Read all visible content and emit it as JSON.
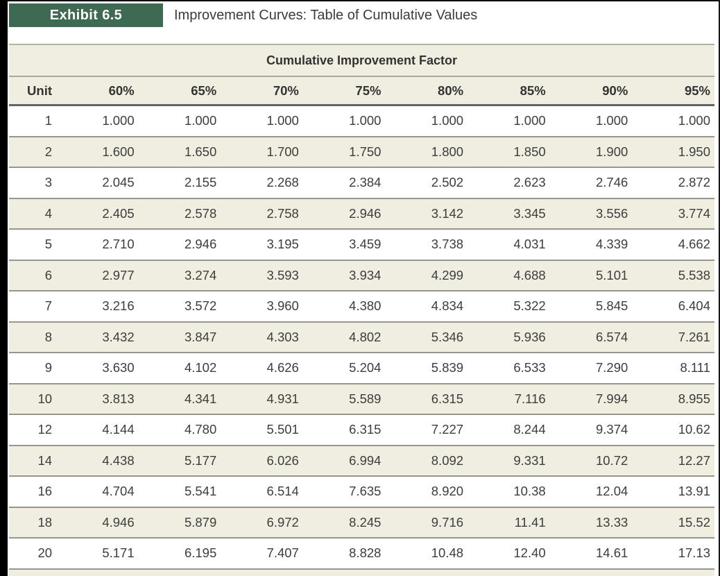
{
  "exhibit": {
    "badge_label": "Exhibit 6.5",
    "title": "Improvement Curves: Table of Cumulative Values"
  },
  "chart_data": {
    "type": "table",
    "title": "Cumulative Improvement Factor",
    "columns": [
      "Unit",
      "60%",
      "65%",
      "70%",
      "75%",
      "80%",
      "85%",
      "90%",
      "95%"
    ],
    "rows": [
      [
        "1",
        "1.000",
        "1.000",
        "1.000",
        "1.000",
        "1.000",
        "1.000",
        "1.000",
        "1.000"
      ],
      [
        "2",
        "1.600",
        "1.650",
        "1.700",
        "1.750",
        "1.800",
        "1.850",
        "1.900",
        "1.950"
      ],
      [
        "3",
        "2.045",
        "2.155",
        "2.268",
        "2.384",
        "2.502",
        "2.623",
        "2.746",
        "2.872"
      ],
      [
        "4",
        "2.405",
        "2.578",
        "2.758",
        "2.946",
        "3.142",
        "3.345",
        "3.556",
        "3.774"
      ],
      [
        "5",
        "2.710",
        "2.946",
        "3.195",
        "3.459",
        "3.738",
        "4.031",
        "4.339",
        "4.662"
      ],
      [
        "6",
        "2.977",
        "3.274",
        "3.593",
        "3.934",
        "4.299",
        "4.688",
        "5.101",
        "5.538"
      ],
      [
        "7",
        "3.216",
        "3.572",
        "3.960",
        "4.380",
        "4.834",
        "5.322",
        "5.845",
        "6.404"
      ],
      [
        "8",
        "3.432",
        "3.847",
        "4.303",
        "4.802",
        "5.346",
        "5.936",
        "6.574",
        "7.261"
      ],
      [
        "9",
        "3.630",
        "4.102",
        "4.626",
        "5.204",
        "5.839",
        "6.533",
        "7.290",
        "8.111"
      ],
      [
        "10",
        "3.813",
        "4.341",
        "4.931",
        "5.589",
        "6.315",
        "7.116",
        "7.994",
        "8.955"
      ],
      [
        "12",
        "4.144",
        "4.780",
        "5.501",
        "6.315",
        "7.227",
        "8.244",
        "9.374",
        "10.62"
      ],
      [
        "14",
        "4.438",
        "5.177",
        "6.026",
        "6.994",
        "8.092",
        "9.331",
        "10.72",
        "12.27"
      ],
      [
        "16",
        "4.704",
        "5.541",
        "6.514",
        "7.635",
        "8.920",
        "10.38",
        "12.04",
        "13.91"
      ],
      [
        "18",
        "4.946",
        "5.879",
        "6.972",
        "8.245",
        "9.716",
        "11.41",
        "13.33",
        "15.52"
      ],
      [
        "20",
        "5.171",
        "6.195",
        "7.407",
        "8.828",
        "10.48",
        "12.40",
        "14.61",
        "17.13"
      ]
    ]
  },
  "colors": {
    "badge_green": "#3e6a53",
    "row_shade_beige": "#f0eee1",
    "row_border_gray": "#98968c",
    "header_rule_dark": "#636363",
    "text": "#3d3d3d",
    "scan_edge_black": "#000000"
  }
}
